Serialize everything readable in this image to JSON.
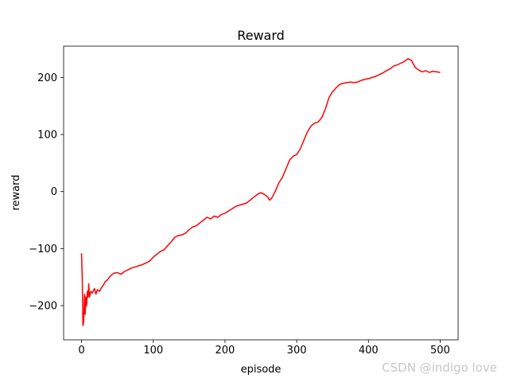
{
  "chart_data": {
    "type": "line",
    "title": "Reward",
    "xlabel": "episode",
    "ylabel": "reward",
    "xlim": [
      -25,
      525
    ],
    "ylim": [
      -260,
      255
    ],
    "xticks": [
      0,
      100,
      200,
      300,
      400,
      500
    ],
    "yticks": [
      -200,
      -100,
      0,
      100,
      200
    ],
    "xtick_labels": [
      "0",
      "100",
      "200",
      "300",
      "400",
      "500"
    ],
    "ytick_labels": [
      "−200",
      "−100",
      "0",
      "100",
      "200"
    ],
    "grid": false,
    "series": [
      {
        "color": "#ff0000",
        "x": [
          0,
          1,
          2,
          3,
          4,
          5,
          6,
          7,
          8,
          9,
          10,
          11,
          12,
          13,
          15,
          18,
          20,
          22,
          25,
          28,
          30,
          33,
          36,
          40,
          45,
          50,
          55,
          60,
          65,
          70,
          75,
          80,
          85,
          90,
          95,
          100,
          105,
          110,
          115,
          120,
          125,
          130,
          135,
          140,
          145,
          150,
          155,
          160,
          165,
          170,
          175,
          180,
          185,
          190,
          195,
          200,
          205,
          210,
          215,
          220,
          225,
          230,
          235,
          240,
          245,
          250,
          255,
          260,
          262,
          265,
          270,
          275,
          280,
          285,
          290,
          295,
          300,
          305,
          310,
          315,
          320,
          325,
          330,
          335,
          340,
          345,
          350,
          355,
          360,
          365,
          370,
          375,
          380,
          385,
          390,
          395,
          400,
          405,
          410,
          415,
          420,
          425,
          430,
          435,
          440,
          445,
          450,
          455,
          460,
          465,
          470,
          475,
          480,
          485,
          490,
          495,
          500
        ],
        "y": [
          -108,
          -150,
          -235,
          -228,
          -180,
          -215,
          -185,
          -200,
          -175,
          -185,
          -162,
          -185,
          -180,
          -175,
          -178,
          -170,
          -180,
          -172,
          -175,
          -168,
          -165,
          -158,
          -155,
          -148,
          -143,
          -142,
          -145,
          -140,
          -137,
          -134,
          -132,
          -130,
          -128,
          -125,
          -122,
          -115,
          -110,
          -105,
          -102,
          -95,
          -88,
          -80,
          -77,
          -76,
          -73,
          -67,
          -62,
          -60,
          -55,
          -50,
          -45,
          -48,
          -43,
          -45,
          -40,
          -38,
          -34,
          -30,
          -26,
          -24,
          -22,
          -20,
          -15,
          -10,
          -5,
          -2,
          -5,
          -10,
          -15,
          -12,
          0,
          15,
          25,
          40,
          55,
          62,
          65,
          75,
          90,
          105,
          115,
          120,
          122,
          130,
          145,
          165,
          175,
          182,
          188,
          190,
          191,
          192,
          191,
          192,
          195,
          197,
          198,
          200,
          202,
          205,
          208,
          212,
          215,
          220,
          222,
          225,
          228,
          233,
          230,
          218,
          213,
          210,
          212,
          209,
          211,
          210,
          209
        ]
      }
    ]
  },
  "watermark": "CSDN @indigo  love"
}
